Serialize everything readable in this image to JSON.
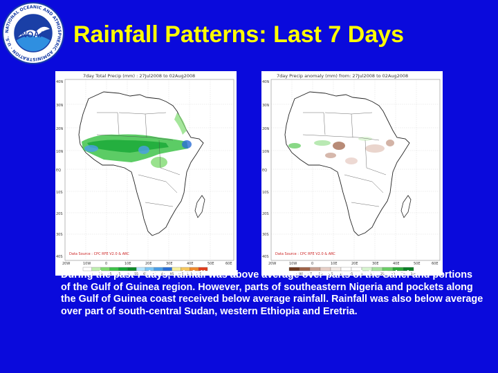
{
  "slide": {
    "title": "Rainfall Patterns: Last 7 Days",
    "description": "During the past 7 days, rainfall was above average over parts of the Sahel and portions of the Gulf of Guinea region.  However, parts of southeastern Nigeria and pockets along the Gulf of Guinea coast received below average rainfall. Rainfall was also below average over part of south-central Sudan, western Ethiopia and Eretria."
  },
  "logo": {
    "name": "NOAA",
    "ring_text": "NATIONAL OCEANIC AND ATMOSPHERIC ADMINISTRATION · U.S. DEPARTMENT OF COMMERCE",
    "colors": {
      "ring": "#ffffff",
      "sky": "#1a3fa6",
      "water": "#2f8fe0",
      "bird": "#ffffff"
    }
  },
  "maps": [
    {
      "id": "total",
      "header": "7day Total Precip (mm) : 27Jul2008 to 02Aug2008",
      "source": "Data Source : CPC RFE V2.0 & ARC",
      "lat_labels": [
        "40N",
        "30N",
        "20N",
        "10N",
        "EQ",
        "10S",
        "20S",
        "30S",
        "40S"
      ],
      "lon_labels": [
        "20W",
        "10W",
        "0",
        "10E",
        "20E",
        "30E",
        "40E",
        "50E",
        "60E"
      ],
      "legend_labels": [
        "5",
        "15",
        "25",
        "35",
        "45",
        "55",
        "65",
        "75",
        "85",
        "95",
        "105",
        "115",
        "125"
      ],
      "legend_colors": [
        "#ffffff",
        "#bfefb0",
        "#7fdb70",
        "#3fc34a",
        "#16a836",
        "#0f8a2a",
        "#b8e8ff",
        "#7ec8f5",
        "#4a9ee8",
        "#2a6ed6",
        "#f6f0a0",
        "#f6c860",
        "#f08c30",
        "#e04020"
      ]
    },
    {
      "id": "anomaly",
      "header": "7day Precip anomaly (mm) from: 27Jul2008 to 02Aug2008",
      "source": "Data Source : CPC RFE V2.0 & ARC",
      "lat_labels": [
        "40N",
        "30N",
        "20N",
        "10N",
        "EQ",
        "10S",
        "20S",
        "30S",
        "40S"
      ],
      "lon_labels": [
        "20W",
        "10W",
        "0",
        "10E",
        "20E",
        "30E",
        "40E",
        "50E",
        "60E"
      ],
      "legend_labels": [
        "-100",
        "-75",
        "-50",
        "-25",
        "-15",
        "-5",
        "5",
        "15",
        "25",
        "50",
        "75",
        "100"
      ],
      "legend_colors": [
        "#6e3a20",
        "#a0644a",
        "#c8a090",
        "#e8d0c8",
        "#f4ece8",
        "#ffffff",
        "#ffffff",
        "#d8f4d0",
        "#a8e4a0",
        "#6cce68",
        "#2eaa3a",
        "#0c8028"
      ]
    }
  ]
}
